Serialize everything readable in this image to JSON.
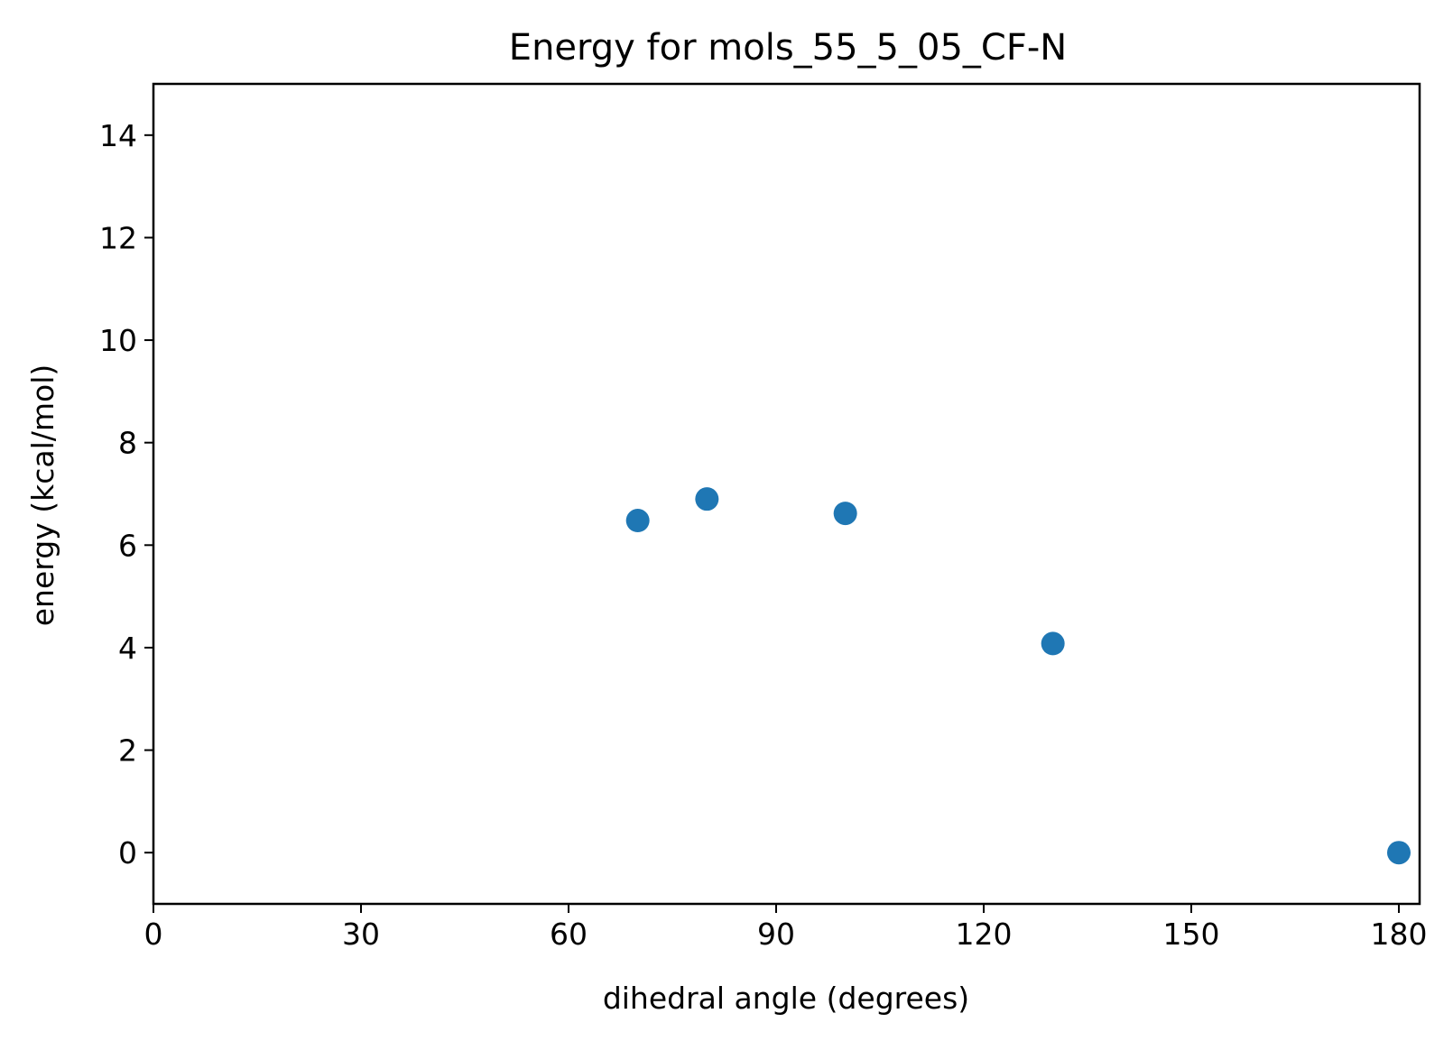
{
  "chart_data": {
    "type": "scatter",
    "title": "Energy for mols_55_5_05_CF-N",
    "xlabel": "dihedral angle (degrees)",
    "ylabel": "energy (kcal/mol)",
    "xlim": [
      0,
      183
    ],
    "ylim": [
      -1,
      15
    ],
    "xticks": [
      0,
      30,
      60,
      90,
      120,
      150,
      180
    ],
    "yticks": [
      0,
      2,
      4,
      6,
      8,
      10,
      12,
      14
    ],
    "grid": false,
    "series": [
      {
        "color": "#1f77b4",
        "points": [
          {
            "x": 70,
            "y": 6.48
          },
          {
            "x": 80,
            "y": 6.9
          },
          {
            "x": 100,
            "y": 6.62
          },
          {
            "x": 130,
            "y": 4.08
          },
          {
            "x": 180,
            "y": 0.0
          }
        ]
      }
    ]
  }
}
